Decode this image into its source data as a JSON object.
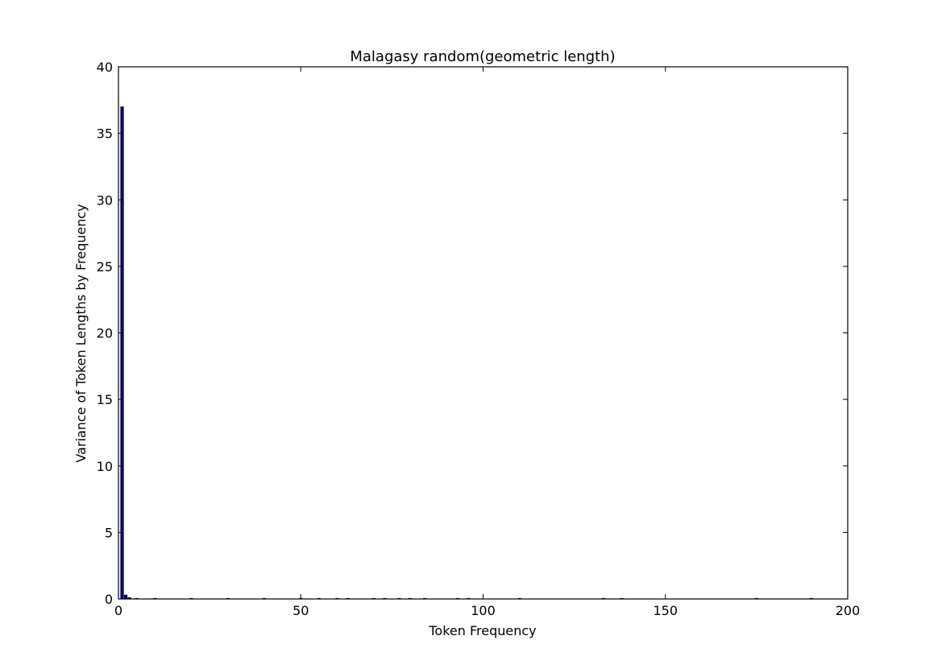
{
  "chart_data": {
    "type": "bar",
    "title": "Malagasy random(geometric length)",
    "xlabel": "Token Frequency",
    "ylabel": "Variance of Token Lengths by Frequency",
    "xlim": [
      0,
      200
    ],
    "ylim": [
      0,
      40
    ],
    "xticks": [
      0,
      50,
      100,
      150,
      200
    ],
    "yticks": [
      0,
      5,
      10,
      15,
      20,
      25,
      30,
      35,
      40
    ],
    "grid": false,
    "bar_color": "#00008b",
    "bar_width": 0.8,
    "x": [
      1,
      2,
      3,
      5,
      10,
      20,
      30,
      40,
      50,
      55,
      60,
      63,
      70,
      73,
      77,
      80,
      84,
      93,
      96,
      110,
      133,
      138,
      175,
      190
    ],
    "values": [
      37,
      0.3,
      0.1,
      0.05,
      0.05,
      0.05,
      0.05,
      0.05,
      0.05,
      0.05,
      0.05,
      0.05,
      0.05,
      0.05,
      0.05,
      0.05,
      0.05,
      0.05,
      0.05,
      0.05,
      0.05,
      0.05,
      0.05,
      0.05
    ]
  }
}
